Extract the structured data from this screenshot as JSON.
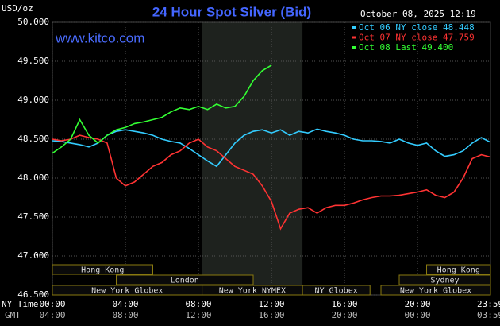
{
  "chart_data": {
    "type": "line",
    "title": "24 Hour Spot Silver (Bid)",
    "timestamp": "October 08, 2025 12:19",
    "y_label": "USD/oz",
    "watermark": "www.kitco.com",
    "x_label_ny": "NY Time",
    "x_label_gmt": "GMT",
    "xlim": [
      0,
      24
    ],
    "xticks": [
      {
        "value": 0,
        "label": "00:00"
      },
      {
        "value": 4,
        "label": "04:00"
      },
      {
        "value": 8,
        "label": "08:00"
      },
      {
        "value": 12,
        "label": "12:00"
      },
      {
        "value": 16,
        "label": "16:00"
      },
      {
        "value": 20,
        "label": "20:00"
      },
      {
        "value": 23.98,
        "label": "23:59"
      }
    ],
    "xticks_gmt": [
      "04:00",
      "08:00",
      "12:00",
      "16:00",
      "20:00",
      "00:00",
      "03:59"
    ],
    "ylim": [
      46.5,
      50
    ],
    "yticks": [
      {
        "value": 46.5,
        "label": "46.500"
      },
      {
        "value": 47,
        "label": "47.000"
      },
      {
        "value": 47.5,
        "label": "47.500"
      },
      {
        "value": 48,
        "label": "48.000"
      },
      {
        "value": 48.5,
        "label": "48.500"
      },
      {
        "value": 49,
        "label": "49.000"
      },
      {
        "value": 49.5,
        "label": "49.500"
      },
      {
        "value": 50,
        "label": "50.000"
      }
    ],
    "grid": true,
    "x": [
      0,
      0.5,
      1,
      1.5,
      2,
      2.5,
      3,
      3.5,
      4,
      4.5,
      5,
      5.5,
      6,
      6.5,
      7,
      7.5,
      8,
      8.5,
      9,
      9.5,
      10,
      10.5,
      11,
      11.5,
      12,
      12.5,
      13,
      13.5,
      14,
      14.5,
      15,
      15.5,
      16,
      16.5,
      17,
      17.5,
      18,
      18.5,
      19,
      19.5,
      20,
      20.5,
      21,
      21.5,
      22,
      22.5,
      23,
      23.5,
      24
    ],
    "series": [
      {
        "name": "Oct 06 NY close 48.448",
        "color": "#33ccff",
        "values": [
          48.48,
          48.47,
          48.45,
          48.43,
          48.4,
          48.45,
          48.55,
          48.6,
          48.62,
          48.6,
          48.58,
          48.55,
          48.5,
          48.47,
          48.45,
          48.38,
          48.3,
          48.22,
          48.15,
          48.3,
          48.45,
          48.55,
          48.6,
          48.62,
          48.58,
          48.62,
          48.55,
          48.6,
          48.58,
          48.63,
          48.6,
          48.58,
          48.55,
          48.5,
          48.48,
          48.48,
          48.47,
          48.45,
          48.5,
          48.45,
          48.42,
          48.45,
          48.35,
          48.28,
          48.3,
          48.35,
          48.45,
          48.52,
          48.46
        ]
      },
      {
        "name": "Oct 07 NY close 47.759",
        "color": "#ff3333",
        "values": [
          48.5,
          48.48,
          48.5,
          48.55,
          48.52,
          48.5,
          48.45,
          48.0,
          47.9,
          47.95,
          48.05,
          48.15,
          48.2,
          48.3,
          48.35,
          48.45,
          48.5,
          48.4,
          48.35,
          48.25,
          48.15,
          48.1,
          48.05,
          47.9,
          47.7,
          47.35,
          47.55,
          47.6,
          47.62,
          47.55,
          47.62,
          47.65,
          47.65,
          47.68,
          47.72,
          47.75,
          47.77,
          47.77,
          47.78,
          47.8,
          47.82,
          47.85,
          47.78,
          47.75,
          47.82,
          48.0,
          48.25,
          48.3,
          48.27
        ]
      },
      {
        "name": "Oct 08 Last 49.400",
        "color": "#33ff33",
        "values": [
          48.32,
          48.4,
          48.5,
          48.75,
          48.55,
          48.45,
          48.55,
          48.62,
          48.65,
          48.7,
          48.72,
          48.75,
          48.78,
          48.85,
          48.9,
          48.88,
          48.92,
          48.88,
          48.95,
          48.9,
          48.92,
          49.05,
          49.25,
          49.38,
          49.45,
          null,
          null,
          null,
          null,
          null,
          null,
          null,
          null,
          null,
          null,
          null,
          null,
          null,
          null,
          null,
          null,
          null,
          null,
          null,
          null,
          null,
          null,
          null,
          null
        ]
      }
    ],
    "sessions": [
      {
        "name": "Hong Kong",
        "row": 0,
        "start": 0,
        "end": 5.5
      },
      {
        "name": "London",
        "row": 1,
        "start": 3.5,
        "end": 11
      },
      {
        "name": "New York Globex",
        "row": 2,
        "start": 0,
        "end": 8.2
      },
      {
        "name": "New York NYMEX",
        "row": 2,
        "start": 8.2,
        "end": 13.7
      },
      {
        "name": "NY Globex",
        "row": 2,
        "start": 13.7,
        "end": 17.4
      },
      {
        "name": "Hong Kong",
        "row": 0,
        "start": 20.5,
        "end": 24
      },
      {
        "name": "Sydney",
        "row": 1,
        "start": 19,
        "end": 24
      },
      {
        "name": "New York Globex",
        "row": 2,
        "start": 18,
        "end": 24
      }
    ]
  }
}
